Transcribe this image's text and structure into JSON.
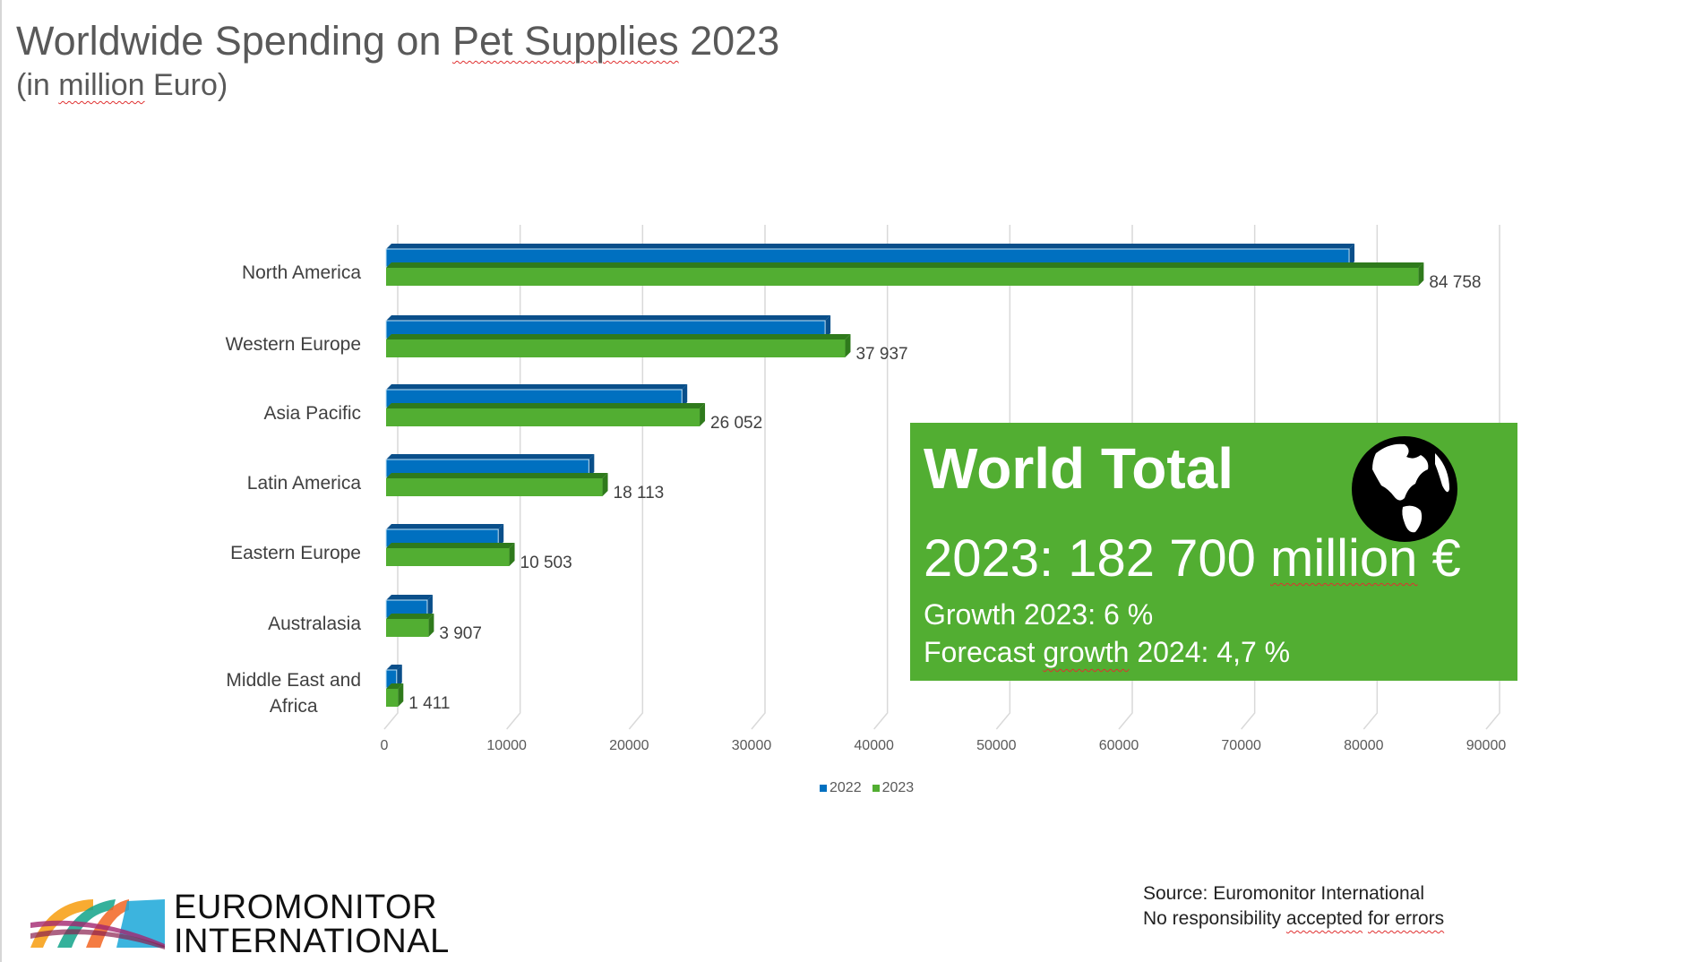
{
  "header": {
    "title_parts": [
      "Worldwide Spending on ",
      "Pet Supplies",
      " 2023"
    ],
    "subtitle_parts": [
      "(in ",
      "million",
      " Euro)"
    ]
  },
  "chart_data": {
    "type": "bar",
    "orientation": "horizontal",
    "style": "3d-clustered",
    "categories": [
      "North America",
      "Western Europe",
      "Asia Pacific",
      "Latin America",
      "Eastern Europe",
      "Australasia",
      "Middle East and Africa"
    ],
    "series": [
      {
        "name": "2022",
        "color": "#0070c0",
        "values": [
          79100,
          36300,
          24600,
          17000,
          9600,
          3800,
          1300
        ]
      },
      {
        "name": "2023",
        "color": "#52ae32",
        "values": [
          84758,
          37937,
          26052,
          18113,
          10503,
          3907,
          1411
        ]
      }
    ],
    "data_labels": [
      "84 758",
      "37 937",
      "26 052",
      "18 113",
      "10 503",
      "3 907",
      "1 411"
    ],
    "x_ticks": [
      "0",
      "10000",
      "20000",
      "30000",
      "40000",
      "50000",
      "60000",
      "70000",
      "80000",
      "90000"
    ],
    "xlim": [
      0,
      90000
    ],
    "grid": true,
    "legend": "bottom",
    "title": "Worldwide Spending on Pet Supplies 2023",
    "xlabel": "",
    "ylabel": ""
  },
  "world_total": {
    "heading": "World Total",
    "total_parts": [
      "2023: 182 700 ",
      "million",
      " €"
    ],
    "growth": "Growth 2023: 6 %",
    "forecast_parts": [
      "Forecast ",
      "growth",
      " 2024: 4,7 %"
    ],
    "icon": "globe-icon",
    "background": "#52ae32"
  },
  "source": {
    "line1": "Source: Euromonitor International",
    "line2_parts": [
      "No responsibility ",
      "accepted",
      " ",
      "for errors"
    ]
  },
  "logo": {
    "line1": "EUROMONITOR",
    "line2": "INTERNATIONAL"
  }
}
